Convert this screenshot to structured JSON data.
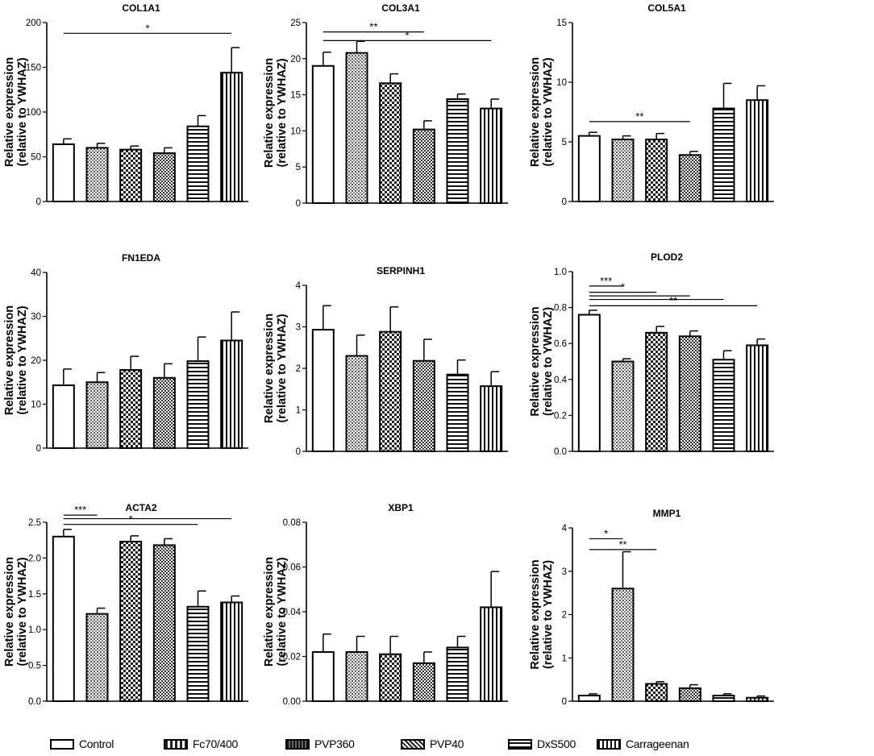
{
  "ylabel_line1": "Relative expression",
  "ylabel_line2": "(relative to YWHAZ)",
  "groups": [
    "Control",
    "Fc70/400",
    "PVP360",
    "PVP40",
    "DxS500",
    "Carrageenan"
  ],
  "patterns": [
    "none",
    "dots",
    "check",
    "hatch-fine",
    "hstripe",
    "vstripe"
  ],
  "chart_data": [
    {
      "type": "bar",
      "title": "COL1A1",
      "ylim": [
        0,
        200
      ],
      "ticks": [
        "0",
        "50",
        "100",
        "150",
        "200"
      ],
      "tick_values": [
        0,
        50,
        100,
        150,
        200
      ],
      "values": [
        64,
        60,
        58,
        54,
        84,
        144
      ],
      "errors": [
        6,
        5,
        4,
        6,
        12,
        28
      ],
      "sig": [
        {
          "label": "*",
          "from": 0,
          "to": 5,
          "y": 188
        }
      ]
    },
    {
      "type": "bar",
      "title": "COL3A1",
      "ylim": [
        0,
        25
      ],
      "ticks": [
        "0",
        "5",
        "10",
        "15",
        "20",
        "25"
      ],
      "tick_values": [
        0,
        5,
        10,
        15,
        20,
        25
      ],
      "values": [
        19,
        20.8,
        16.6,
        10.2,
        14.4,
        13.1
      ],
      "errors": [
        1.9,
        1.6,
        1.3,
        1.2,
        0.7,
        1.3
      ],
      "sig": [
        {
          "label": "**",
          "from": 0,
          "to": 3,
          "y": 23.7
        },
        {
          "label": "*",
          "from": 0,
          "to": 5,
          "y": 22.5
        }
      ]
    },
    {
      "type": "bar",
      "title": "COL5A1",
      "ylim": [
        0,
        15
      ],
      "ticks": [
        "0",
        "5",
        "10",
        "15"
      ],
      "tick_values": [
        0,
        5,
        10,
        15
      ],
      "values": [
        5.5,
        5.2,
        5.2,
        3.9,
        7.8,
        8.5
      ],
      "errors": [
        0.3,
        0.3,
        0.5,
        0.3,
        2.1,
        1.2
      ],
      "sig": [
        {
          "label": "**",
          "from": 0,
          "to": 3,
          "y": 6.7
        }
      ]
    },
    {
      "type": "bar",
      "title": "FN1EDA",
      "ylim": [
        0,
        40
      ],
      "ticks": [
        "0",
        "10",
        "20",
        "30",
        "40"
      ],
      "tick_values": [
        0,
        10,
        20,
        30,
        40
      ],
      "values": [
        14.3,
        15,
        17.8,
        16,
        19.8,
        24.5
      ],
      "errors": [
        3.7,
        2.2,
        3.1,
        3.2,
        5.5,
        6.5
      ],
      "sig": []
    },
    {
      "type": "bar",
      "title": "SERPINH1",
      "ylim": [
        0,
        4
      ],
      "ticks": [
        "0",
        "1",
        "2",
        "3",
        "4"
      ],
      "tick_values": [
        0,
        1,
        2,
        3,
        4
      ],
      "values": [
        2.93,
        2.3,
        2.88,
        2.18,
        1.85,
        1.57
      ],
      "errors": [
        0.58,
        0.5,
        0.6,
        0.52,
        0.35,
        0.35
      ],
      "sig": []
    },
    {
      "type": "bar",
      "title": "PLOD2",
      "ylim": [
        0,
        1.0
      ],
      "ticks": [
        "0.0",
        "0.2",
        "0.4",
        "0.6",
        "0.8",
        "1.0"
      ],
      "tick_values": [
        0,
        0.2,
        0.4,
        0.6,
        0.8,
        1.0
      ],
      "values": [
        0.76,
        0.5,
        0.66,
        0.64,
        0.51,
        0.59
      ],
      "errors": [
        0.025,
        0.015,
        0.035,
        0.03,
        0.05,
        0.035
      ],
      "sig": [
        {
          "label": "***",
          "from": 0,
          "to": 1,
          "y": 0.92
        },
        {
          "label": "*",
          "from": 0,
          "to": 2,
          "y": 0.885
        },
        {
          "label": "",
          "from": 0,
          "to": 3,
          "y": 0.865
        },
        {
          "label": "",
          "from": 0,
          "to": 4,
          "y": 0.845
        },
        {
          "label": "**",
          "from": 0,
          "to": 5,
          "y": 0.81
        }
      ]
    },
    {
      "type": "bar",
      "title": "ACTA2",
      "ylim": [
        0,
        2.5
      ],
      "ticks": [
        "0.0",
        "0.5",
        "1.0",
        "1.5",
        "2.0",
        "2.5"
      ],
      "tick_values": [
        0,
        0.5,
        1.0,
        1.5,
        2.0,
        2.5
      ],
      "values": [
        2.3,
        1.22,
        2.23,
        2.18,
        1.32,
        1.38
      ],
      "errors": [
        0.1,
        0.08,
        0.08,
        0.09,
        0.22,
        0.09
      ],
      "sig": [
        {
          "label": "***",
          "from": 0,
          "to": 1,
          "y": 2.6
        },
        {
          "label": "*",
          "from": 0,
          "to": 4,
          "y": 2.47
        },
        {
          "label": "",
          "from": 0,
          "to": 5,
          "y": 2.55
        }
      ]
    },
    {
      "type": "bar",
      "title": "XBP1",
      "ylim": [
        0,
        0.08
      ],
      "ticks": [
        "0.00",
        "0.02",
        "0.04",
        "0.06",
        "0.08"
      ],
      "tick_values": [
        0,
        0.02,
        0.04,
        0.06,
        0.08
      ],
      "values": [
        0.022,
        0.022,
        0.021,
        0.017,
        0.024,
        0.042
      ],
      "errors": [
        0.008,
        0.007,
        0.008,
        0.005,
        0.005,
        0.016
      ],
      "sig": []
    },
    {
      "type": "bar",
      "title": "MMP1",
      "ylim": [
        0,
        4
      ],
      "ticks": [
        "0",
        "1",
        "2",
        "3",
        "4"
      ],
      "tick_values": [
        0,
        1,
        2,
        3,
        4
      ],
      "values": [
        0.13,
        2.6,
        0.4,
        0.3,
        0.13,
        0.08
      ],
      "errors": [
        0.04,
        0.85,
        0.05,
        0.08,
        0.04,
        0.04
      ],
      "sig": [
        {
          "label": "*",
          "from": 0,
          "to": 1,
          "y": 3.75
        },
        {
          "label": "**",
          "from": 0,
          "to": 2,
          "y": 3.5
        }
      ]
    }
  ]
}
